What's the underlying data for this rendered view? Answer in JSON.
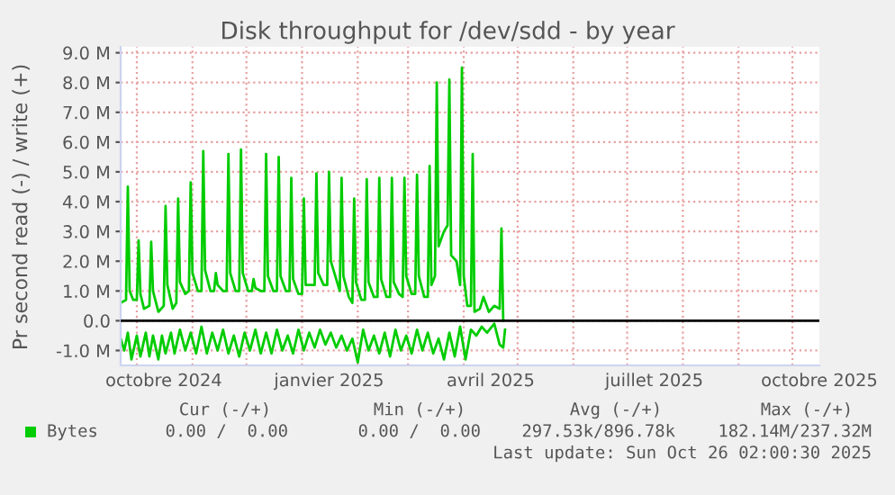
{
  "chart_data": {
    "type": "line",
    "title": "Disk throughput for /dev/sdd - by year",
    "ylabel": "Pr second read (-) / write (+)",
    "xlim": [
      "2024-09-22",
      "2025-10-16"
    ],
    "ylim": [
      -1500000,
      9200000
    ],
    "yticks": [
      {
        "value": -1000000,
        "label": "-1.0 M"
      },
      {
        "value": 0,
        "label": "0.0"
      },
      {
        "value": 1000000,
        "label": "1.0 M"
      },
      {
        "value": 2000000,
        "label": "2.0 M"
      },
      {
        "value": 3000000,
        "label": "3.0 M"
      },
      {
        "value": 4000000,
        "label": "4.0 M"
      },
      {
        "value": 5000000,
        "label": "5.0 M"
      },
      {
        "value": 6000000,
        "label": "6.0 M"
      },
      {
        "value": 7000000,
        "label": "7.0 M"
      },
      {
        "value": 8000000,
        "label": "8.0 M"
      },
      {
        "value": 9000000,
        "label": "9.0 M"
      }
    ],
    "xticks": [
      {
        "value": "2024-10-01",
        "label": null
      },
      {
        "value": "2024-11-01",
        "label": null
      },
      {
        "value": "2024-12-01",
        "label": null
      },
      {
        "value": "2025-01-01",
        "label": null
      },
      {
        "value": "2025-02-01",
        "label": null
      },
      {
        "value": "2025-03-01",
        "label": null
      },
      {
        "value": "2025-04-01",
        "label": null
      },
      {
        "value": "2025-05-01",
        "label": null
      },
      {
        "value": "2025-06-01",
        "label": null
      },
      {
        "value": "2025-07-01",
        "label": null
      },
      {
        "value": "2025-08-01",
        "label": null
      },
      {
        "value": "2025-09-01",
        "label": null
      },
      {
        "value": "2025-10-01",
        "label": null
      },
      {
        "value": "2024-10-16",
        "label": "octobre 2024"
      },
      {
        "value": "2025-01-16",
        "label": "janvier 2025"
      },
      {
        "value": "2025-04-16",
        "label": "avril 2025"
      },
      {
        "value": "2025-07-16",
        "label": "juillet 2025"
      },
      {
        "value": "2025-10-16",
        "label": "octobre 2025"
      }
    ],
    "grid": true,
    "legend": "bottom left",
    "ref_lines": [
      {
        "axis": "y",
        "value": 0,
        "label": null,
        "color": "#000000"
      }
    ],
    "series": [
      {
        "name": "Bytes",
        "color": "#00cc00",
        "x": [
          "2024-09-22",
          "2024-09-25",
          "2024-09-26",
          "2024-09-27",
          "2024-09-29",
          "2024-10-01",
          "2024-10-02",
          "2024-10-03",
          "2024-10-05",
          "2024-10-08",
          "2024-10-09",
          "2024-10-10",
          "2024-10-13",
          "2024-10-16",
          "2024-10-17",
          "2024-10-18",
          "2024-10-21",
          "2024-10-23",
          "2024-10-24",
          "2024-10-25",
          "2024-10-28",
          "2024-10-30",
          "2024-10-31",
          "2024-11-01",
          "2024-11-04",
          "2024-11-06",
          "2024-11-07",
          "2024-11-08",
          "2024-11-11",
          "2024-11-13",
          "2024-11-14",
          "2024-11-15",
          "2024-11-18",
          "2024-11-20",
          "2024-11-21",
          "2024-11-22",
          "2024-11-25",
          "2024-11-27",
          "2024-11-28",
          "2024-11-29",
          "2024-12-02",
          "2024-12-04",
          "2024-12-05",
          "2024-12-06",
          "2024-12-09",
          "2024-12-11",
          "2024-12-12",
          "2024-12-13",
          "2024-12-16",
          "2024-12-18",
          "2024-12-19",
          "2024-12-20",
          "2024-12-23",
          "2024-12-25",
          "2024-12-26",
          "2024-12-27",
          "2024-12-30",
          "2025-01-01",
          "2025-01-02",
          "2025-01-03",
          "2025-01-06",
          "2025-01-08",
          "2025-01-09",
          "2025-01-10",
          "2025-01-13",
          "2025-01-15",
          "2025-01-16",
          "2025-01-17",
          "2025-01-20",
          "2025-01-22",
          "2025-01-23",
          "2025-01-24",
          "2025-01-27",
          "2025-01-29",
          "2025-01-30",
          "2025-01-31",
          "2025-02-03",
          "2025-02-05",
          "2025-02-06",
          "2025-02-07",
          "2025-02-10",
          "2025-02-12",
          "2025-02-13",
          "2025-02-14",
          "2025-02-17",
          "2025-02-19",
          "2025-02-20",
          "2025-02-21",
          "2025-02-24",
          "2025-02-26",
          "2025-02-27",
          "2025-02-28",
          "2025-03-03",
          "2025-03-05",
          "2025-03-06",
          "2025-03-07",
          "2025-03-10",
          "2025-03-12",
          "2025-03-13",
          "2025-03-14",
          "2025-03-16",
          "2025-03-17",
          "2025-03-18",
          "2025-03-21",
          "2025-03-23",
          "2025-03-24",
          "2025-03-25",
          "2025-03-28",
          "2025-03-30",
          "2025-03-31",
          "2025-04-01",
          "2025-04-03",
          "2025-04-05",
          "2025-04-06",
          "2025-04-07",
          "2025-04-10",
          "2025-04-12",
          "2025-04-15",
          "2025-04-18",
          "2025-04-21",
          "2025-04-22",
          "2025-04-23"
        ],
        "values": [
          600000,
          700000,
          4500000,
          1000000,
          700000,
          700000,
          2700000,
          900000,
          400000,
          500000,
          2650000,
          1000000,
          300000,
          500000,
          3850000,
          1200000,
          400000,
          600000,
          4100000,
          1300000,
          900000,
          1000000,
          4650000,
          1600000,
          1000000,
          1000000,
          5700000,
          1700000,
          1000000,
          1000000,
          1600000,
          1200000,
          1000000,
          1000000,
          5600000,
          1600000,
          1000000,
          1000000,
          5750000,
          1600000,
          1000000,
          1000000,
          1400000,
          1100000,
          1000000,
          1000000,
          5600000,
          1500000,
          1000000,
          1000000,
          5500000,
          1500000,
          1000000,
          1000000,
          4800000,
          1400000,
          900000,
          900000,
          4100000,
          1200000,
          1200000,
          1200000,
          4950000,
          1600000,
          1200000,
          1200000,
          5000000,
          2000000,
          1400000,
          1000000,
          4800000,
          1500000,
          800000,
          600000,
          4100000,
          1300000,
          700000,
          700000,
          4750000,
          1300000,
          800000,
          800000,
          4800000,
          1400000,
          800000,
          800000,
          4800000,
          1300000,
          900000,
          800000,
          4800000,
          1500000,
          900000,
          900000,
          4900000,
          1500000,
          800000,
          800000,
          5200000,
          1200000,
          1500000,
          8000000,
          2500000,
          3000000,
          3200000,
          8100000,
          2200000,
          2000000,
          1200000,
          8500000,
          1500000,
          500000,
          500000,
          5600000,
          300000,
          400000,
          800000,
          300000,
          500000,
          400000,
          3100000,
          0
        ]
      },
      {
        "color": "#00cc00",
        "x": [
          "2024-09-22",
          "2024-09-24",
          "2024-09-26",
          "2024-09-28",
          "2024-10-01",
          "2024-10-03",
          "2024-10-06",
          "2024-10-08",
          "2024-10-10",
          "2024-10-13",
          "2024-10-15",
          "2024-10-17",
          "2024-10-20",
          "2024-10-22",
          "2024-10-25",
          "2024-10-28",
          "2024-10-31",
          "2024-11-03",
          "2024-11-06",
          "2024-11-09",
          "2024-11-12",
          "2024-11-15",
          "2024-11-18",
          "2024-11-21",
          "2024-11-24",
          "2024-11-27",
          "2024-11-30",
          "2024-12-03",
          "2024-12-06",
          "2024-12-09",
          "2024-12-12",
          "2024-12-15",
          "2024-12-18",
          "2024-12-21",
          "2024-12-24",
          "2024-12-27",
          "2024-12-30",
          "2025-01-02",
          "2025-01-05",
          "2025-01-08",
          "2025-01-11",
          "2025-01-14",
          "2025-01-17",
          "2025-01-20",
          "2025-01-23",
          "2025-01-26",
          "2025-01-29",
          "2025-02-01",
          "2025-02-04",
          "2025-02-07",
          "2025-02-10",
          "2025-02-13",
          "2025-02-16",
          "2025-02-19",
          "2025-02-22",
          "2025-02-25",
          "2025-02-28",
          "2025-03-03",
          "2025-03-06",
          "2025-03-09",
          "2025-03-12",
          "2025-03-15",
          "2025-03-18",
          "2025-03-21",
          "2025-03-24",
          "2025-03-27",
          "2025-03-30",
          "2025-04-02",
          "2025-04-05",
          "2025-04-08",
          "2025-04-11",
          "2025-04-14",
          "2025-04-18",
          "2025-04-21",
          "2025-04-23",
          "2025-04-24"
        ],
        "values": [
          -600000,
          -1000000,
          -400000,
          -1300000,
          -500000,
          -1200000,
          -400000,
          -1200000,
          -500000,
          -1300000,
          -500000,
          -1100000,
          -400000,
          -1100000,
          -300000,
          -1000000,
          -400000,
          -1100000,
          -200000,
          -1100000,
          -400000,
          -1000000,
          -300000,
          -1100000,
          -500000,
          -1200000,
          -400000,
          -1000000,
          -300000,
          -1100000,
          -400000,
          -1100000,
          -300000,
          -1000000,
          -500000,
          -1100000,
          -300000,
          -1000000,
          -400000,
          -900000,
          -300000,
          -800000,
          -400000,
          -900000,
          -500000,
          -1000000,
          -600000,
          -1400000,
          -300000,
          -1000000,
          -500000,
          -1100000,
          -400000,
          -1200000,
          -300000,
          -1000000,
          -500000,
          -1100000,
          -300000,
          -1000000,
          -400000,
          -1100000,
          -600000,
          -1300000,
          -400000,
          -1200000,
          -200000,
          -1300000,
          -300000,
          -500000,
          -200000,
          -400000,
          -100000,
          -800000,
          -900000,
          -300000
        ]
      }
    ],
    "annotations": [
      "Cur (-/+)",
      "Min (-/+)",
      "Avg (-/+)",
      "Max (-/+)",
      "0.00 /  0.00",
      "0.00 /  0.00",
      "297.53k/896.78k",
      "182.14M/237.32M",
      "Last update: Sun Oct 26 02:00:30 2025"
    ]
  }
}
